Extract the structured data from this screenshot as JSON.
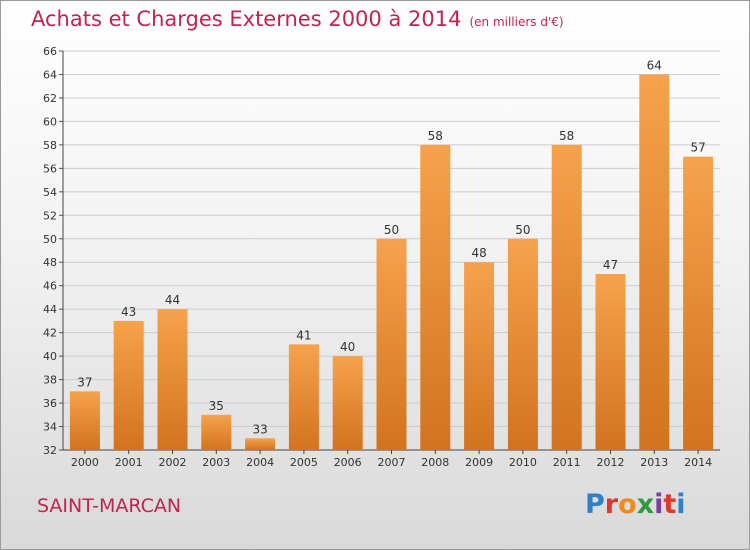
{
  "title": "Achats et Charges Externes 2000 à 2014",
  "unit_note": "(en milliers d'€)",
  "town": "SAINT-MARCAN",
  "logo": {
    "text": "Proxiti",
    "letters": [
      {
        "ch": "P",
        "color": "#2f7fc9"
      },
      {
        "ch": "r",
        "color": "#e0372a"
      },
      {
        "ch": "o",
        "color": "#f08a1e"
      },
      {
        "ch": "x",
        "color": "#2f9c3c"
      },
      {
        "ch": "i",
        "color": "#7b3fa0"
      },
      {
        "ch": "t",
        "color": "#e0372a"
      },
      {
        "ch": "i",
        "color": "#2f7fc9"
      }
    ]
  },
  "colors": {
    "bar_light": "#f6a24c",
    "bar_dark": "#d2731f",
    "title": "#c0244f",
    "grid": "#cccccc"
  },
  "chart_data": {
    "type": "bar",
    "categories": [
      "2000",
      "2001",
      "2002",
      "2003",
      "2004",
      "2005",
      "2006",
      "2007",
      "2008",
      "2009",
      "2010",
      "2011",
      "2012",
      "2013",
      "2014"
    ],
    "values": [
      37,
      43,
      44,
      35,
      33,
      41,
      40,
      50,
      58,
      48,
      50,
      58,
      47,
      64,
      57
    ],
    "ylim": [
      32,
      66
    ],
    "yticks": [
      32,
      34,
      36,
      38,
      40,
      42,
      44,
      46,
      48,
      50,
      52,
      54,
      56,
      58,
      60,
      62,
      64,
      66
    ],
    "grid": true,
    "data_labels": true
  }
}
